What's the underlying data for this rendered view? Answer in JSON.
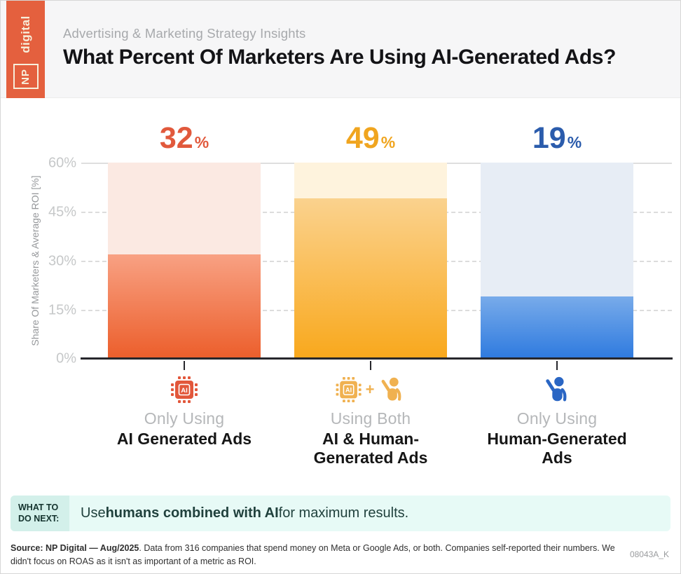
{
  "header": {
    "logo_np": "NP",
    "logo_digital": "digital",
    "kicker": "Advertising & Marketing Strategy Insights",
    "title": "What Percent Of Marketers Are Using AI-Generated Ads?"
  },
  "chart_data": {
    "type": "bar",
    "title": "What Percent Of Marketers Are Using AI-Generated Ads?",
    "ylabel": "Share Of Marketers & Average ROI [%]",
    "ylim": [
      0,
      60
    ],
    "grid": true,
    "yticks": [
      "60%",
      "45%",
      "30%",
      "15%",
      "0%"
    ],
    "categories": [
      "Only Using AI Generated Ads",
      "Using Both AI & Human-Generated Ads",
      "Only Using Human-Generated Ads"
    ],
    "values": [
      32,
      49,
      19
    ],
    "bars": [
      {
        "value": 32,
        "value_label": "32",
        "pct": "%",
        "category_top": "Only Using",
        "category_bold": "AI Generated Ads",
        "icon": "ai-chip-icon",
        "value_color": "#e1593c",
        "column_bg": "#fbe9e2",
        "gradient_top": "#f8a183",
        "gradient_bottom": "#ec5e2b",
        "icon_color": "#e2573b"
      },
      {
        "value": 49,
        "value_label": "49",
        "pct": "%",
        "category_top": "Using Both",
        "category_bold": "AI & Human-\nGenerated Ads",
        "icon": "ai-chip-plus-person-icon",
        "value_color": "#f0a51f",
        "column_bg": "#fef3dd",
        "gradient_top": "#fad28e",
        "gradient_bottom": "#f9a81c",
        "icon_color": "#f0b150"
      },
      {
        "value": 19,
        "value_label": "19",
        "pct": "%",
        "category_top": "Only Using",
        "category_bold": "Human-Generated\nAds",
        "icon": "person-icon",
        "value_color": "#2b5cac",
        "column_bg": "#e7edf5",
        "gradient_top": "#78abea",
        "gradient_bottom": "#2e7adf",
        "icon_color": "#2a66c4"
      }
    ],
    "chip_text": "AI",
    "plus": "+"
  },
  "next_step": {
    "label_line1": "WHAT TO",
    "label_line2": "DO NEXT:",
    "text_prefix": "Use ",
    "text_bold": "humans combined with AI",
    "text_suffix": " for maximum results."
  },
  "footer": {
    "source_bold": "Source: NP Digital — Aug/2025",
    "source_rest": ". Data from 316 companies that spend money on Meta or Google Ads, or both. Companies self-reported their numbers. We didn't focus on ROAS as it isn't as important of a metric as ROI.",
    "code": "08043A_K"
  }
}
